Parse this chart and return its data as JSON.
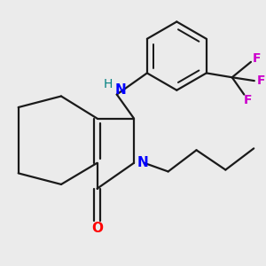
{
  "bg_color": "#ebebeb",
  "bond_color": "#1a1a1a",
  "N_color": "#0000ff",
  "O_color": "#ff0000",
  "F_color": "#cc00cc",
  "NH_color": "#008080",
  "line_width": 1.6,
  "figsize": [
    3.0,
    3.0
  ],
  "dpi": 100,
  "xlim": [
    0.0,
    3.0
  ],
  "ylim": [
    0.3,
    3.0
  ]
}
